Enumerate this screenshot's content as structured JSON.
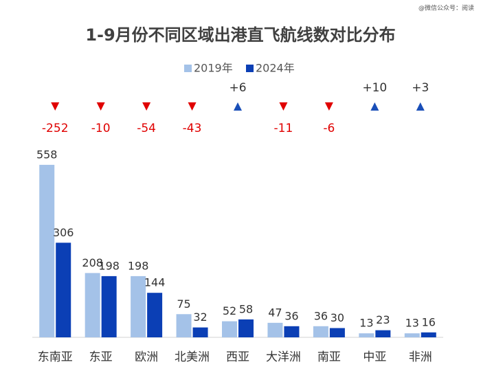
{
  "chart_data": {
    "type": "bar",
    "title": "1-9月份不同区域出港直飞航线数对比分布",
    "watermark": "@微信公众号：阅读",
    "categories": [
      "东南亚",
      "东亚",
      "欧洲",
      "北美洲",
      "西亚",
      "大洋洲",
      "南亚",
      "中亚",
      "非洲"
    ],
    "series": [
      {
        "name": "2019年",
        "color": "#a4c2e8",
        "values": [
          558,
          208,
          198,
          75,
          52,
          47,
          36,
          13,
          13
        ]
      },
      {
        "name": "2024年",
        "color": "#0b3fb5",
        "values": [
          306,
          198,
          144,
          32,
          58,
          36,
          30,
          23,
          16
        ]
      }
    ],
    "changes": {
      "values": [
        -252,
        -10,
        -54,
        -43,
        6,
        -11,
        -6,
        10,
        3
      ],
      "value_labels": [
        "-252",
        "-10",
        "-54",
        "-43",
        "+6",
        "-11",
        "-6",
        "+10",
        "+3"
      ],
      "down_color": "#e00000",
      "up_color": "#1a4fb8"
    },
    "ylim": [
      0,
      600
    ],
    "grid": false,
    "legend": "top"
  }
}
